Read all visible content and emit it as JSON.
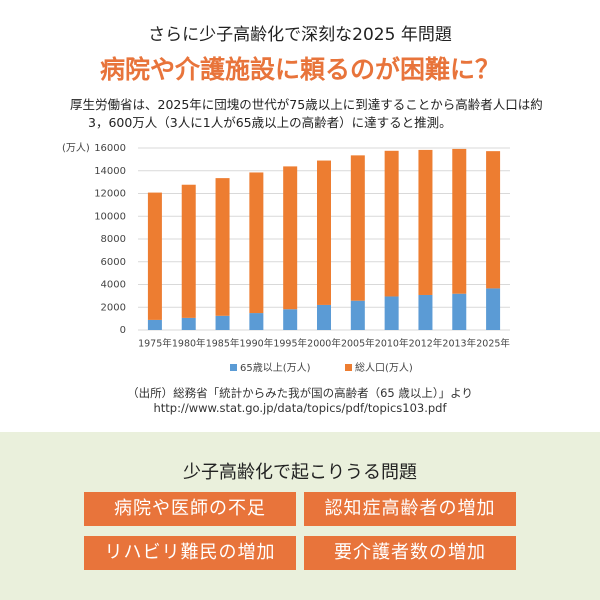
{
  "header": {
    "subtitle": "さらに少子高齢化で深刻な2025 年問題",
    "title": "病院や介護施設に頼るのが困難に？",
    "description": [
      "厚生労働省は、2025年に団塊の世代が75歳以上に到達することから高齢者人口は約",
      "3，600万人（3人に1人が65歳以上の高齢者）に達すると推測。"
    ]
  },
  "chart_data": {
    "type": "bar",
    "stacked": true,
    "y_unit_label": "(万人)",
    "categories": [
      "1975年",
      "1980年",
      "1985年",
      "1990年",
      "1995年",
      "2000年",
      "2005年",
      "2010年",
      "2012年",
      "2013年",
      "2025年"
    ],
    "series": [
      {
        "name": "65歳以上(万人)",
        "color": "#5b9bd5",
        "values": [
          887,
          1065,
          1247,
          1489,
          1826,
          2204,
          2576,
          2948,
          3079,
          3190,
          3657
        ]
      },
      {
        "name": "総人口(万人)",
        "color": "#ed7d31",
        "values": [
          11194,
          11706,
          12105,
          12361,
          12557,
          12693,
          12777,
          12806,
          12752,
          12730,
          12066
        ]
      }
    ],
    "ylim": [
      0,
      16000
    ],
    "yticks": [
      0,
      2000,
      4000,
      6000,
      8000,
      10000,
      12000,
      14000,
      16000
    ],
    "grid": true,
    "legend": "bottom"
  },
  "source": [
    "（出所）総務省「統計からみた我が国の高齢者（65 歳以上）」より",
    "http://www.stat.go.jp/data/topics/pdf/topics103.pdf"
  ],
  "problems": {
    "heading": "少子高齢化で起こりうる問題",
    "items": [
      "病院や医師の不足",
      "認知症高齢者の増加",
      "リハビリ難民の増加",
      "要介護者数の増加"
    ]
  }
}
